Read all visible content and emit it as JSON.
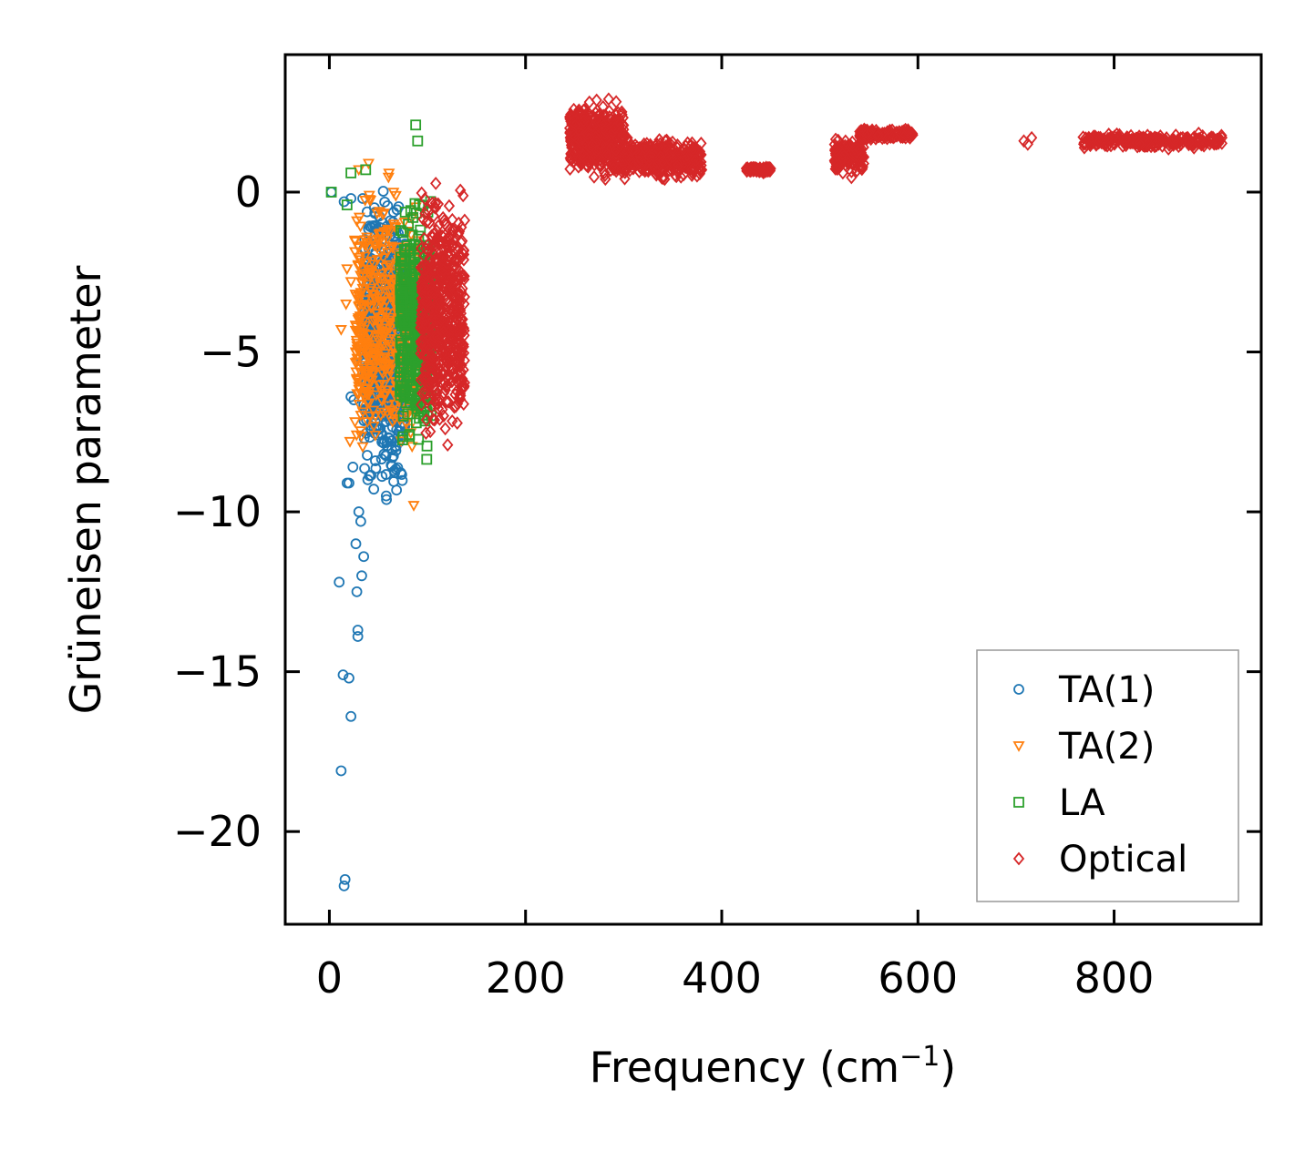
{
  "chart_data": {
    "type": "scatter",
    "title": "",
    "xlabel": "Frequency (cm",
    "xlabel_sup": "−1",
    "xlabel_close": ")",
    "ylabel": "Grüneisen parameter",
    "xlim": [
      -45,
      950
    ],
    "ylim": [
      -22.9,
      4.3
    ],
    "xticks": [
      0,
      200,
      400,
      600,
      800
    ],
    "xtick_labels": [
      "0",
      "200",
      "400",
      "600",
      "800"
    ],
    "yticks": [
      0,
      -5,
      -10,
      -15,
      -20
    ],
    "ytick_labels": [
      "0",
      "−5",
      "−10",
      "−15",
      "−20"
    ],
    "grid": false,
    "legend_position": "lower-right",
    "series": [
      {
        "name": "TA(1)",
        "marker": "circle",
        "color": "#1f77b4",
        "outliers": [
          [
            10,
            -12.2
          ],
          [
            12,
            -18.1
          ],
          [
            14,
            -15.1
          ],
          [
            15,
            -21.7
          ],
          [
            16,
            -21.5
          ],
          [
            20,
            -15.2
          ],
          [
            22,
            -16.4
          ],
          [
            27,
            -11.0
          ],
          [
            29,
            -13.7
          ],
          [
            29,
            -13.9
          ],
          [
            33,
            -12.0
          ],
          [
            35,
            -11.4
          ],
          [
            28,
            -12.5
          ],
          [
            18,
            -9.1
          ],
          [
            22,
            -6.4
          ],
          [
            25,
            -6.5
          ],
          [
            24,
            -8.6
          ],
          [
            30,
            -10.0
          ],
          [
            32,
            -10.3
          ],
          [
            20,
            -9.1
          ],
          [
            15,
            -0.3
          ],
          [
            22,
            -0.2
          ],
          [
            33,
            -5.3
          ],
          [
            33,
            -3.6
          ],
          [
            34,
            -0.2
          ],
          [
            2,
            0.0
          ]
        ],
        "bands": [
          {
            "x": [
              35,
              78
            ],
            "y": [
              -10.4,
              0.8
            ],
            "count": 700
          }
        ]
      },
      {
        "name": "TA(2)",
        "marker": "triangle-down",
        "color": "#ff7f0e",
        "outliers": [
          [
            12,
            -4.3
          ],
          [
            18,
            -2.4
          ],
          [
            17,
            -3.5
          ],
          [
            26,
            -1.5
          ],
          [
            30,
            0.7
          ],
          [
            28,
            -0.9
          ],
          [
            22,
            -2.8
          ],
          [
            21,
            -7.8
          ],
          [
            35,
            -6.3
          ],
          [
            40,
            0.9
          ],
          [
            86,
            -9.8
          ]
        ],
        "bands": [
          {
            "x": [
              26,
              92
            ],
            "y": [
              -9.5,
              1.3
            ],
            "count": 500
          }
        ]
      },
      {
        "name": "LA",
        "marker": "square",
        "color": "#2ca02c",
        "outliers": [
          [
            2,
            0.0
          ],
          [
            18,
            -0.4
          ],
          [
            22,
            0.6
          ],
          [
            88,
            2.1
          ],
          [
            37,
            0.7
          ],
          [
            90,
            1.6
          ]
        ],
        "bands": [
          {
            "x": [
              72,
              104
            ],
            "y": [
              -9.0,
              0.6
            ],
            "count": 420
          }
        ]
      },
      {
        "name": "Optical",
        "marker": "diamond",
        "color": "#d62728",
        "outliers": [
          [
            708,
            1.6
          ],
          [
            712,
            1.5
          ],
          [
            716,
            1.7
          ]
        ],
        "bands": [
          {
            "x": [
              93,
              138
            ],
            "y": [
              -8.5,
              0.9
            ],
            "count": 600
          },
          {
            "x": [
              245,
              300
            ],
            "y": [
              0.2,
              3.1
            ],
            "count": 500
          },
          {
            "x": [
              300,
              380
            ],
            "y": [
              0.3,
              1.8
            ],
            "count": 400
          },
          {
            "x": [
              425,
              450
            ],
            "y": [
              0.6,
              0.8
            ],
            "count": 80
          },
          {
            "x": [
              515,
              545
            ],
            "y": [
              0.4,
              1.9
            ],
            "count": 140
          },
          {
            "x": [
              540,
              595
            ],
            "y": [
              1.6,
              2.0
            ],
            "count": 150
          },
          {
            "x": [
              768,
              910
            ],
            "y": [
              1.3,
              1.9
            ],
            "count": 260
          }
        ]
      }
    ]
  }
}
